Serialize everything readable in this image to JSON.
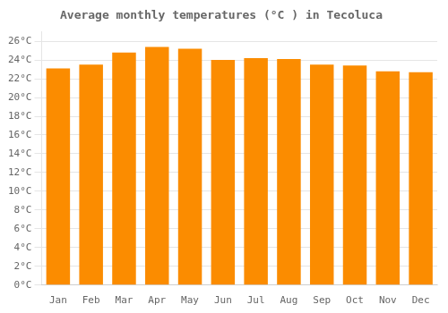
{
  "chart_data": {
    "type": "bar",
    "title": "Average monthly temperatures (°C ) in Tecoluca",
    "categories": [
      "Jan",
      "Feb",
      "Mar",
      "Apr",
      "May",
      "Jun",
      "Jul",
      "Aug",
      "Sep",
      "Oct",
      "Nov",
      "Dec"
    ],
    "values": [
      23.1,
      23.5,
      24.8,
      25.4,
      25.2,
      24.0,
      24.2,
      24.1,
      23.5,
      23.4,
      22.8,
      22.7
    ],
    "color": "#FB8C00",
    "ylim": [
      0,
      27
    ],
    "yticks": [
      {
        "value": 0,
        "label": "0°C"
      },
      {
        "value": 2,
        "label": "2°C"
      },
      {
        "value": 4,
        "label": "4°C"
      },
      {
        "value": 6,
        "label": "6°C"
      },
      {
        "value": 8,
        "label": "8°C"
      },
      {
        "value": 10,
        "label": "10°C"
      },
      {
        "value": 12,
        "label": "12°C"
      },
      {
        "value": 14,
        "label": "14°C"
      },
      {
        "value": 16,
        "label": "16°C"
      },
      {
        "value": 18,
        "label": "18°C"
      },
      {
        "value": 20,
        "label": "20°C"
      },
      {
        "value": 22,
        "label": "22°C"
      },
      {
        "value": 24,
        "label": "24°C"
      },
      {
        "value": 26,
        "label": "26°C"
      }
    ],
    "grid": true
  }
}
